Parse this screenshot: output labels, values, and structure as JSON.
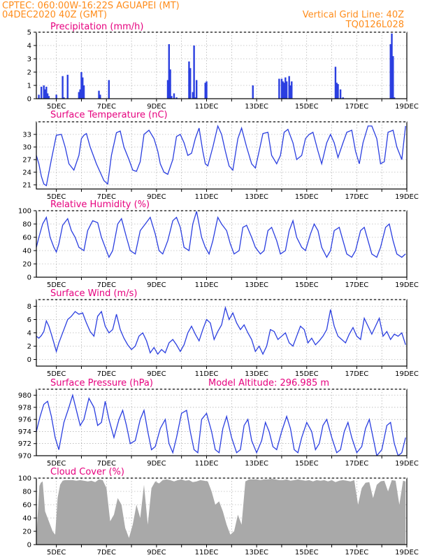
{
  "header": {
    "line1": "CPTEC:   060:00W-16:22S   AGUAPEI (MT)",
    "line2": "04DEC2020 40Z (GMT)",
    "grid_note": "Vertical Grid Line: 40Z",
    "run_code": "TQ0126L028"
  },
  "model_altitude": "Model Altitude: 296.985 m",
  "day_labels": [
    "5DEC",
    "7DEC",
    "9DEC",
    "11DEC",
    "13DEC",
    "15DEC",
    "17DEC",
    "19DEC"
  ],
  "colors": {
    "line": "#2b3fe0",
    "bar_precip": "#2b3fe0",
    "cloud": "#a9a9a9",
    "header": "#ff8c1a",
    "title": "#e6007e"
  },
  "chart_data": [
    {
      "type": "bar",
      "title": "Precipitation (mm/h)",
      "ylim": [
        0,
        5
      ],
      "yticks": [
        0,
        1,
        2,
        3,
        4,
        5
      ],
      "x_start_day": 4.2,
      "x_end_day": 19,
      "x": [
        4.3,
        4.4,
        4.5,
        4.55,
        4.6,
        4.65,
        4.7,
        5.0,
        5.25,
        5.3,
        5.45,
        5.9,
        5.95,
        6.0,
        6.05,
        6.1,
        6.7,
        6.75,
        7.1,
        9.45,
        9.5,
        9.55,
        9.6,
        9.7,
        9.8,
        10.3,
        10.35,
        10.45,
        10.5,
        10.55,
        10.6,
        10.95,
        11.0,
        12.85,
        13.9,
        14.0,
        14.05,
        14.1,
        14.15,
        14.2,
        14.3,
        14.35,
        14.4,
        16.15,
        16.2,
        16.25,
        16.35,
        16.45,
        18.35,
        18.4,
        18.45,
        18.5
      ],
      "values": [
        0.3,
        0.9,
        1.0,
        0.7,
        0.9,
        0.4,
        0.2,
        0.3,
        1.7,
        0.1,
        1.8,
        0.5,
        0.7,
        2.0,
        1.6,
        1.0,
        0.6,
        0.3,
        1.4,
        1.4,
        4.1,
        2.2,
        0.2,
        0.4,
        0.1,
        2.8,
        2.3,
        0.5,
        4.0,
        0.1,
        1.4,
        1.2,
        1.3,
        1.0,
        1.5,
        1.5,
        1.3,
        1.2,
        1.6,
        1.3,
        1.7,
        1.0,
        1.3,
        2.4,
        1.2,
        1.1,
        0.7,
        0.1,
        4.1,
        4.9,
        3.2,
        0.1
      ]
    },
    {
      "type": "line",
      "title": "Surface Temperature (nC)",
      "ylim": [
        20,
        36
      ],
      "yticks": [
        21,
        24,
        27,
        30,
        33
      ],
      "x": [
        4.2,
        4.3,
        4.4,
        4.5,
        4.6,
        4.8,
        5.0,
        5.2,
        5.35,
        5.5,
        5.7,
        5.9,
        6.0,
        6.1,
        6.2,
        6.35,
        6.6,
        6.75,
        6.9,
        7.05,
        7.2,
        7.4,
        7.55,
        7.7,
        7.9,
        8.05,
        8.2,
        8.35,
        8.5,
        8.7,
        8.9,
        9.05,
        9.15,
        9.3,
        9.45,
        9.65,
        9.8,
        9.95,
        10.1,
        10.25,
        10.4,
        10.55,
        10.7,
        10.85,
        10.95,
        11.05,
        11.25,
        11.45,
        11.6,
        11.75,
        11.9,
        12.05,
        12.25,
        12.4,
        12.6,
        12.8,
        12.95,
        13.1,
        13.25,
        13.45,
        13.6,
        13.8,
        13.95,
        14.1,
        14.25,
        14.45,
        14.6,
        14.8,
        14.95,
        15.1,
        15.25,
        15.45,
        15.6,
        15.8,
        15.95,
        16.1,
        16.25,
        16.45,
        16.6,
        16.8,
        16.95,
        17.1,
        17.25,
        17.45,
        17.6,
        17.8,
        17.95,
        18.1,
        18.25,
        18.45,
        18.6,
        18.8,
        18.95
      ],
      "values": [
        28,
        26,
        23,
        21.2,
        20.8,
        27,
        32.8,
        33,
        30,
        26,
        24.5,
        28,
        32,
        32.8,
        33.2,
        30,
        26,
        24,
        22,
        21.2,
        28,
        33.4,
        33.8,
        30,
        27,
        24.5,
        24.2,
        26.5,
        33,
        34,
        32,
        29,
        26,
        24,
        23.5,
        27,
        32.5,
        33,
        31,
        28,
        28.5,
        32,
        34.5,
        29,
        26,
        25.5,
        30,
        35,
        33,
        29,
        25.5,
        24.5,
        32,
        34.5,
        30,
        26,
        25,
        29,
        33.2,
        33.5,
        28,
        26,
        28,
        33.5,
        34.2,
        31,
        27,
        28,
        32,
        33,
        33.5,
        29,
        26,
        31,
        33,
        31,
        27.5,
        31,
        33.5,
        34,
        29,
        26,
        31,
        35,
        35,
        32,
        26,
        26.5,
        33.5,
        34,
        30,
        27,
        35
      ]
    },
    {
      "type": "line",
      "title": "Relative Humidity (%)",
      "ylim": [
        0,
        100
      ],
      "yticks": [
        0,
        20,
        40,
        60,
        80,
        100
      ],
      "x": [
        4.2,
        4.3,
        4.45,
        4.6,
        4.75,
        4.9,
        5.0,
        5.1,
        5.25,
        5.45,
        5.6,
        5.75,
        5.9,
        6.1,
        6.25,
        6.45,
        6.65,
        6.8,
        6.95,
        7.1,
        7.25,
        7.45,
        7.6,
        7.8,
        7.95,
        8.15,
        8.35,
        8.55,
        8.75,
        8.95,
        9.1,
        9.25,
        9.45,
        9.65,
        9.8,
        9.95,
        10.1,
        10.3,
        10.45,
        10.6,
        10.8,
        10.95,
        11.1,
        11.25,
        11.45,
        11.6,
        11.8,
        11.95,
        12.1,
        12.3,
        12.45,
        12.6,
        12.8,
        12.95,
        13.15,
        13.3,
        13.45,
        13.6,
        13.8,
        13.95,
        14.15,
        14.3,
        14.45,
        14.6,
        14.8,
        14.95,
        15.15,
        15.3,
        15.45,
        15.6,
        15.8,
        15.95,
        16.1,
        16.3,
        16.45,
        16.6,
        16.8,
        16.95,
        17.15,
        17.3,
        17.45,
        17.6,
        17.8,
        17.95,
        18.15,
        18.3,
        18.45,
        18.6,
        18.8,
        18.95
      ],
      "values": [
        45,
        60,
        80,
        90,
        60,
        45,
        38,
        50,
        78,
        88,
        70,
        60,
        45,
        40,
        70,
        85,
        82,
        60,
        45,
        30,
        40,
        80,
        88,
        60,
        40,
        35,
        70,
        80,
        90,
        65,
        40,
        35,
        55,
        85,
        90,
        75,
        45,
        40,
        80,
        99,
        60,
        45,
        35,
        55,
        90,
        80,
        70,
        50,
        35,
        40,
        75,
        78,
        60,
        45,
        35,
        40,
        70,
        75,
        55,
        35,
        40,
        70,
        85,
        60,
        45,
        40,
        65,
        80,
        70,
        45,
        30,
        40,
        70,
        75,
        55,
        35,
        30,
        40,
        70,
        75,
        55,
        35,
        30,
        45,
        75,
        80,
        55,
        35,
        30,
        35
      ]
    },
    {
      "type": "line",
      "title": "Surface Wind (m/s)",
      "ylim": [
        -1,
        9
      ],
      "yticks": [
        0,
        2,
        4,
        6,
        8
      ],
      "x": [
        4.2,
        4.3,
        4.4,
        4.5,
        4.6,
        4.7,
        4.8,
        4.9,
        5.0,
        5.1,
        5.2,
        5.3,
        5.45,
        5.6,
        5.75,
        5.9,
        6.05,
        6.2,
        6.35,
        6.5,
        6.65,
        6.8,
        6.95,
        7.1,
        7.25,
        7.4,
        7.55,
        7.7,
        7.85,
        8.0,
        8.15,
        8.3,
        8.45,
        8.6,
        8.75,
        8.9,
        9.05,
        9.2,
        9.35,
        9.5,
        9.65,
        9.8,
        9.95,
        10.1,
        10.25,
        10.4,
        10.55,
        10.7,
        10.85,
        11.0,
        11.15,
        11.3,
        11.45,
        11.6,
        11.75,
        11.9,
        12.05,
        12.2,
        12.35,
        12.5,
        12.65,
        12.8,
        12.95,
        13.1,
        13.25,
        13.4,
        13.55,
        13.7,
        13.85,
        14.0,
        14.15,
        14.3,
        14.45,
        14.6,
        14.75,
        14.9,
        15.05,
        15.2,
        15.35,
        15.5,
        15.65,
        15.8,
        15.95,
        16.1,
        16.25,
        16.4,
        16.55,
        16.7,
        16.85,
        17.0,
        17.15,
        17.3,
        17.45,
        17.6,
        17.75,
        17.9,
        18.05,
        18.2,
        18.35,
        18.5,
        18.65,
        18.8,
        18.95
      ],
      "values": [
        3.5,
        3.2,
        3.6,
        4.2,
        5.8,
        5.0,
        3.8,
        2.5,
        1.2,
        2.5,
        3.5,
        4.5,
        6.0,
        6.5,
        7.2,
        6.8,
        7.0,
        5.5,
        4.2,
        3.5,
        6.5,
        7.2,
        5.0,
        4.0,
        4.5,
        6.8,
        4.5,
        3.2,
        2.2,
        1.5,
        2.0,
        3.5,
        4.0,
        2.8,
        1.0,
        1.8,
        0.8,
        1.5,
        1.0,
        2.5,
        3.0,
        2.2,
        1.2,
        2.2,
        4.0,
        5.0,
        3.8,
        2.8,
        4.5,
        6.0,
        5.5,
        3.0,
        4.2,
        5.2,
        7.8,
        6.0,
        7.0,
        5.5,
        4.5,
        5.2,
        4.0,
        3.0,
        1.2,
        2.0,
        0.8,
        2.0,
        4.5,
        4.2,
        3.0,
        3.5,
        4.0,
        2.5,
        2.0,
        3.5,
        5.0,
        4.5,
        2.5,
        3.2,
        2.2,
        2.8,
        3.5,
        4.5,
        7.5,
        5.0,
        3.5,
        3.0,
        2.5,
        3.8,
        4.8,
        3.5,
        3.0,
        6.2,
        5.0,
        3.8,
        5.0,
        6.2,
        3.5,
        4.2,
        3.0,
        3.8,
        3.5,
        4.0,
        2.2
      ]
    },
    {
      "type": "line",
      "title": "Surface Pressure (hPa)",
      "ylim": [
        970,
        981
      ],
      "yticks": [
        970,
        972,
        974,
        976,
        978,
        980
      ],
      "x": [
        4.2,
        4.35,
        4.5,
        4.65,
        4.8,
        4.95,
        5.1,
        5.3,
        5.5,
        5.65,
        5.8,
        5.95,
        6.1,
        6.3,
        6.5,
        6.65,
        6.8,
        6.95,
        7.1,
        7.3,
        7.5,
        7.65,
        7.8,
        7.95,
        8.15,
        8.35,
        8.5,
        8.65,
        8.8,
        8.95,
        9.15,
        9.35,
        9.5,
        9.65,
        9.8,
        10.0,
        10.2,
        10.35,
        10.5,
        10.65,
        10.8,
        11.0,
        11.2,
        11.35,
        11.5,
        11.65,
        11.8,
        12.0,
        12.2,
        12.35,
        12.5,
        12.65,
        12.8,
        13.0,
        13.2,
        13.35,
        13.5,
        13.65,
        13.8,
        14.0,
        14.2,
        14.35,
        14.5,
        14.65,
        14.8,
        15.0,
        15.2,
        15.35,
        15.5,
        15.65,
        15.8,
        16.0,
        16.2,
        16.35,
        16.5,
        16.65,
        16.8,
        17.0,
        17.2,
        17.35,
        17.5,
        17.65,
        17.8,
        18.0,
        18.2,
        18.35,
        18.5,
        18.65,
        18.8,
        18.95
      ],
      "values": [
        974,
        976.5,
        978.5,
        979,
        976.5,
        973,
        971,
        975.5,
        978,
        980,
        977.5,
        975,
        976,
        979.5,
        978,
        975,
        975.5,
        979,
        976,
        973,
        976,
        977.5,
        975,
        972,
        972.5,
        976,
        977.5,
        974,
        971,
        971.5,
        974.5,
        976,
        972,
        970.5,
        973,
        977,
        977.5,
        974,
        971,
        970.5,
        976,
        977,
        974,
        971,
        970.5,
        974.5,
        976.5,
        973,
        970.5,
        971,
        975,
        976,
        972.5,
        970.5,
        972.5,
        975.5,
        974,
        971.5,
        971,
        974,
        976.5,
        974.5,
        971,
        970.5,
        973,
        975.5,
        974,
        971,
        972,
        975,
        976,
        973,
        970.5,
        971,
        974,
        975.5,
        973,
        970.5,
        971.5,
        974.5,
        976,
        973,
        970,
        971,
        975,
        975.5,
        972,
        970,
        970.5,
        973
      ]
    },
    {
      "type": "area",
      "title": "Cloud Cover (%)",
      "ylim": [
        0,
        100
      ],
      "yticks": [
        0,
        20,
        40,
        60,
        80,
        100
      ],
      "x": [
        4.2,
        4.28,
        4.32,
        4.38,
        4.45,
        4.55,
        4.65,
        4.75,
        4.85,
        4.95,
        5.05,
        5.15,
        5.25,
        5.35,
        5.5,
        5.65,
        5.8,
        5.95,
        6.1,
        6.25,
        6.4,
        6.55,
        6.7,
        6.85,
        7.0,
        7.15,
        7.3,
        7.45,
        7.6,
        7.75,
        7.9,
        8.05,
        8.2,
        8.35,
        8.5,
        8.65,
        8.8,
        8.95,
        9.1,
        9.25,
        9.4,
        9.55,
        9.7,
        9.85,
        10.0,
        10.15,
        10.3,
        10.45,
        10.6,
        10.75,
        10.9,
        11.05,
        11.2,
        11.35,
        11.5,
        11.65,
        11.8,
        11.95,
        12.1,
        12.25,
        12.4,
        12.55,
        12.7,
        12.85,
        13.0,
        13.15,
        13.3,
        13.45,
        13.6,
        13.75,
        13.9,
        14.05,
        14.2,
        14.35,
        14.5,
        14.65,
        14.8,
        14.95,
        15.1,
        15.25,
        15.4,
        15.55,
        15.7,
        15.85,
        16.0,
        16.15,
        16.3,
        16.45,
        16.6,
        16.75,
        16.9,
        17.05,
        17.2,
        17.35,
        17.5,
        17.65,
        17.8,
        17.95,
        18.1,
        18.25,
        18.4,
        18.55,
        18.7,
        18.85,
        18.95
      ],
      "values": [
        15,
        60,
        88,
        93,
        95,
        50,
        40,
        30,
        20,
        15,
        70,
        90,
        96,
        97,
        97,
        97,
        96,
        97,
        96,
        95,
        96,
        94,
        98,
        97,
        85,
        35,
        45,
        70,
        60,
        25,
        10,
        30,
        60,
        40,
        90,
        30,
        85,
        95,
        92,
        97,
        98,
        97,
        95,
        97,
        98,
        96,
        97,
        94,
        95,
        97,
        96,
        95,
        80,
        60,
        65,
        50,
        30,
        15,
        20,
        45,
        30,
        95,
        98,
        98,
        98,
        97,
        98,
        98,
        99,
        98,
        97,
        97,
        98,
        96,
        97,
        98,
        97,
        96,
        97,
        95,
        97,
        96,
        97,
        95,
        97,
        94,
        96,
        97,
        96,
        95,
        97,
        60,
        85,
        93,
        94,
        70,
        90,
        95,
        96,
        80,
        97,
        96,
        60,
        96,
        95
      ]
    }
  ]
}
